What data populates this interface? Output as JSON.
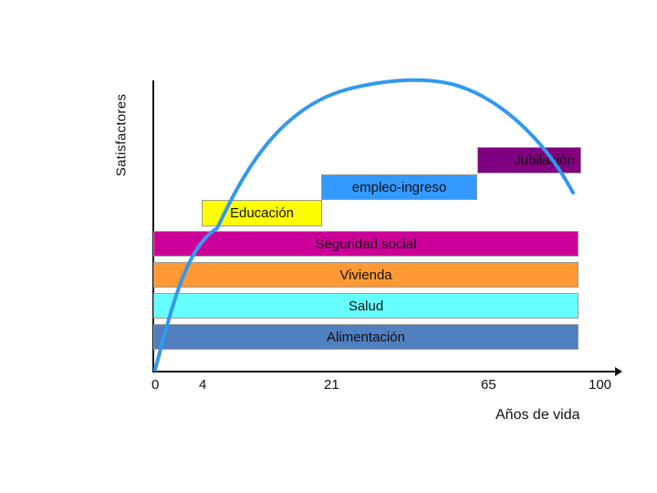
{
  "axes": {
    "y_title": "Satisfactores",
    "x_title": "Años de vida",
    "x_ticks": [
      "0",
      "4",
      "21",
      "65",
      "100"
    ]
  },
  "bands": [
    {
      "label": "Jubilación",
      "color": "#800080"
    },
    {
      "label": "empleo-ingreso",
      "color": "#3399FF"
    },
    {
      "label": "Educación",
      "color": "#FFFF00"
    },
    {
      "label": "Seguridad social",
      "color": "#CC0099"
    },
    {
      "label": "Vivienda",
      "color": "#FF9933"
    },
    {
      "label": "Salud",
      "color": "#66FFFF"
    },
    {
      "label": "Alimentación",
      "color": "#5080C0"
    }
  ],
  "curve_color": "#3399EE",
  "axis_color": "#111111"
}
